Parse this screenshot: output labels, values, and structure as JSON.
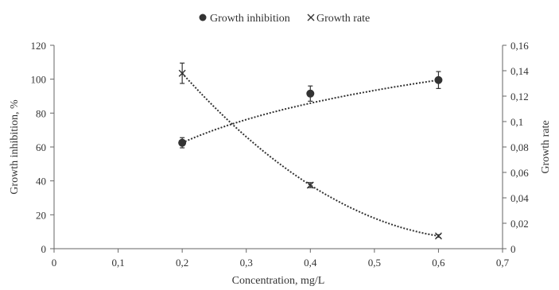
{
  "chart_data": {
    "type": "scatter",
    "xlabel": "Concentration, mg/L",
    "ylabel_left": "Growth inhibition, %",
    "ylabel_right": "Growth rate",
    "xlim": [
      0,
      0.7
    ],
    "ylim_left": [
      0,
      120
    ],
    "ylim_right": [
      0,
      0.16
    ],
    "x_ticks": [
      "0",
      "0,1",
      "0,2",
      "0,3",
      "0,4",
      "0,5",
      "0,6",
      "0,7"
    ],
    "y_ticks_left": [
      "0",
      "20",
      "40",
      "60",
      "80",
      "100",
      "120"
    ],
    "y_ticks_right": [
      "0",
      "0,02",
      "0,04",
      "0,06",
      "0,08",
      "0,1",
      "0,12",
      "0,14",
      "0,16"
    ],
    "grid": false,
    "legend": "top-center",
    "series": [
      {
        "name": "Growth inhibition",
        "axis": "left",
        "marker": "circle",
        "color": "#333333",
        "x": [
          0.2,
          0.4,
          0.6
        ],
        "y": [
          62.5,
          91.5,
          99.5
        ],
        "error": [
          3,
          4.5,
          5
        ]
      },
      {
        "name": "Growth rate",
        "axis": "right",
        "marker": "x",
        "color": "#333333",
        "x": [
          0.2,
          0.4,
          0.6
        ],
        "y": [
          0.138,
          0.05,
          0.01
        ],
        "error": [
          0.008,
          0.002,
          0.001
        ]
      }
    ]
  }
}
